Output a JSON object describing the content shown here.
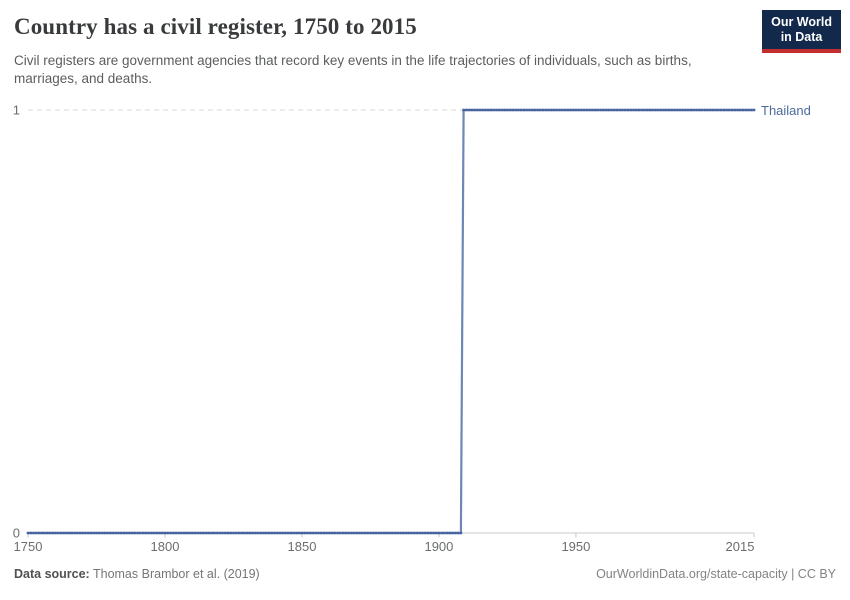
{
  "header": {
    "title": "Country has a civil register, 1750 to 2015",
    "subtitle": "Civil registers are government agencies that record key events in the life trajectories of individuals, such as births, marriages, and deaths."
  },
  "logo": {
    "line1": "Our World",
    "line2": "in Data",
    "background_color": "#12294b",
    "accent_color": "#c32e31"
  },
  "chart_data": {
    "type": "line",
    "title": "Country has a civil register, 1750 to 2015",
    "xlabel": "",
    "ylabel": "",
    "x_range": [
      1750,
      2015
    ],
    "ylim": [
      0,
      1
    ],
    "x_ticks": [
      1750,
      1800,
      1850,
      1900,
      1950,
      2015
    ],
    "y_ticks": [
      0,
      1
    ],
    "grid": "dashed horizontal gridline at y=1, solid axis at y=0",
    "legend_position": "right-of-line-end",
    "series": [
      {
        "name": "Thailand",
        "color": "#4c6a9c",
        "line_color": "#6d88b4",
        "marker_color": "#44639f",
        "step_points": [
          {
            "year": 1750,
            "value": 0
          },
          {
            "year": 1909,
            "value": 1
          },
          {
            "year": 2015,
            "value": 1
          }
        ],
        "description": "Value is 0 for every year 1750-1908 and 1 for every year 1909-2015 (yearly data points drawn as small markers)."
      }
    ],
    "axis_color": "#c9c9c9",
    "gridline_color": "#d9d9d9"
  },
  "footer": {
    "data_source_label": "Data source:",
    "data_source_value": "Thomas Brambor et al. (2019)",
    "credit": "OurWorldinData.org/state-capacity | CC BY"
  }
}
